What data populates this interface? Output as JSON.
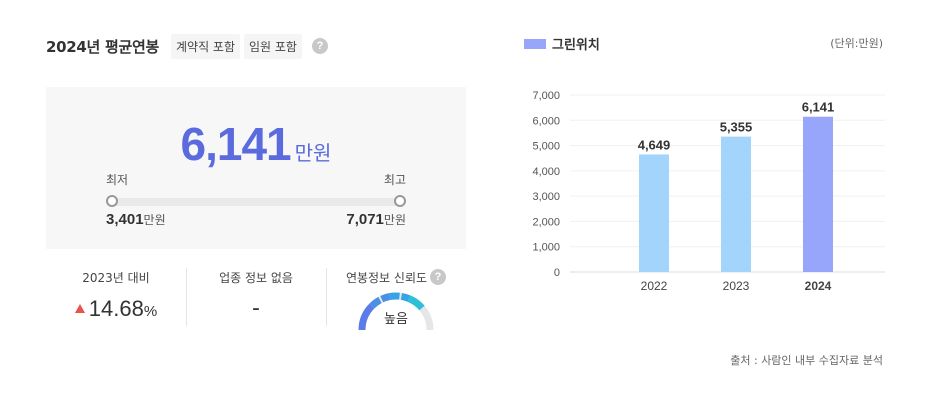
{
  "header": {
    "title": "2024년 평균연봉",
    "tags": [
      "계약직 포함",
      "임원 포함"
    ],
    "help": "?"
  },
  "salary": {
    "average": "6,141",
    "unit": "만원",
    "min_label": "최저",
    "max_label": "최고",
    "min_value": "3,401",
    "max_value": "7,071",
    "range_unit": "만원"
  },
  "stats": {
    "change_label": "2023년 대비",
    "change_value": "14.68",
    "change_unit": "%",
    "industry_label": "업종 정보 없음",
    "industry_value": "-",
    "reliability_label": "연봉정보 신뢰도",
    "reliability_help": "?",
    "reliability_value": "높음"
  },
  "legend": {
    "label": "그린위치",
    "color": "#97a5fb"
  },
  "unit_note": "(단위:만원)",
  "source": "출처 : 사람인 내부 수집자료 분석",
  "chart_data": {
    "type": "bar",
    "categories": [
      "2022",
      "2023",
      "2024"
    ],
    "values": [
      4649,
      5355,
      6141
    ],
    "value_labels": [
      "4,649",
      "5,355",
      "6,141"
    ],
    "y_ticks": [
      "7,000",
      "6,000",
      "5,000",
      "4,000",
      "3,000",
      "2,000",
      "1,000",
      "0"
    ],
    "ylim": [
      0,
      7000
    ],
    "colors": [
      "#a3d4fb",
      "#a3d4fb",
      "#97a5fb"
    ],
    "highlight_index": 2,
    "grid": true
  }
}
